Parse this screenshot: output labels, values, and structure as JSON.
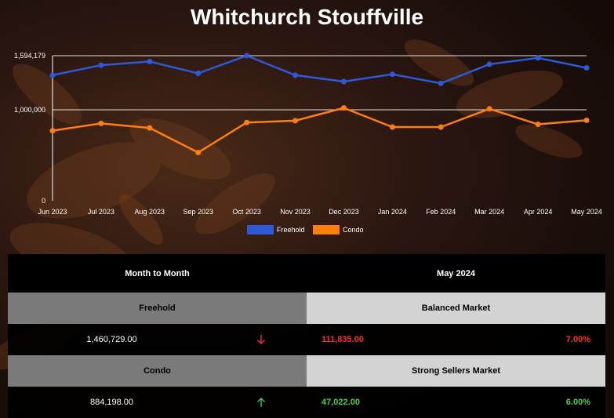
{
  "title": "Whitchurch Stouffville",
  "chart_data": {
    "type": "line",
    "categories": [
      "Jun 2023",
      "Jul 2023",
      "Aug 2023",
      "Sep 2023",
      "Oct 2023",
      "Nov 2023",
      "Dec 2023",
      "Jan 2024",
      "Feb 2024",
      "Mar 2024",
      "Apr 2024",
      "May 2024"
    ],
    "series": [
      {
        "name": "Freehold",
        "color": "#2e59d9",
        "values": [
          1380000,
          1490000,
          1530000,
          1400000,
          1594179,
          1380000,
          1310000,
          1390000,
          1290000,
          1500000,
          1570000,
          1460729
        ]
      },
      {
        "name": "Condo",
        "color": "#ff7f0e",
        "values": [
          770000,
          850000,
          800000,
          530000,
          860000,
          880000,
          1020000,
          810000,
          810000,
          1010000,
          840000,
          884198
        ]
      }
    ],
    "yticks": [
      0,
      1000000,
      1594179
    ],
    "ytick_labels": [
      "0",
      "1,000,000",
      "1,594,179"
    ],
    "ylim": [
      0,
      1594179
    ],
    "grid": true,
    "legend_position": "bottom"
  },
  "table": {
    "header_left": "Month to Month",
    "header_right": "May 2024",
    "freehold": {
      "label": "Freehold",
      "market": "Balanced Market",
      "price": "1,460,729.00",
      "direction": "down",
      "change": "111,835.00",
      "percent": "7.00%",
      "color": "#ff3030"
    },
    "condo": {
      "label": "Condo",
      "market": "Strong Sellers Market",
      "price": "884,198.00",
      "direction": "up",
      "change": "47,022.00",
      "percent": "6.00%",
      "color": "#4ccf4c"
    }
  }
}
